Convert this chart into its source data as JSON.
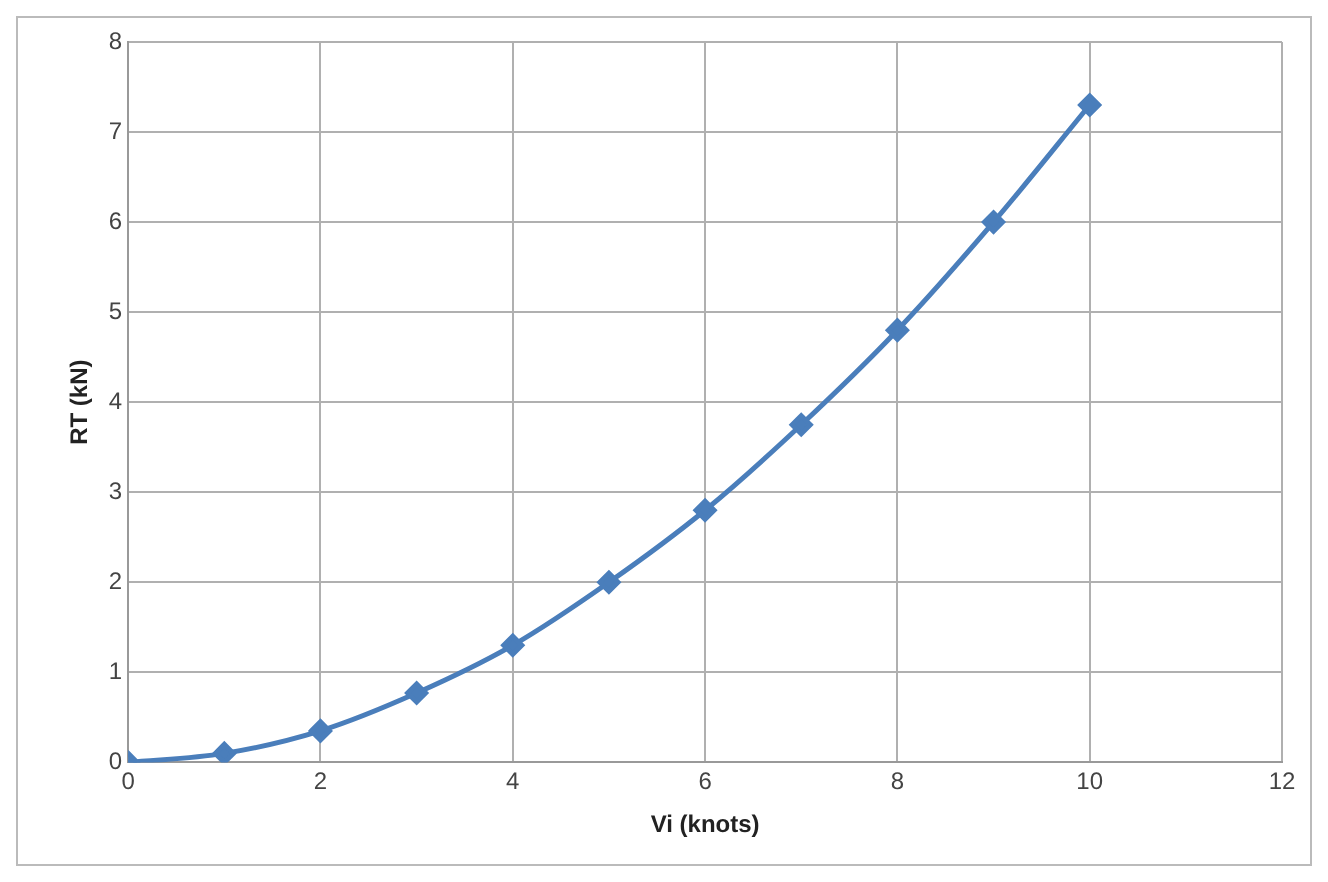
{
  "chart_data": {
    "type": "line",
    "xlabel": "Vi (knots)",
    "ylabel": "RT (kN)",
    "x": [
      0,
      1,
      2,
      3,
      4,
      5,
      6,
      7,
      8,
      9,
      10
    ],
    "series": [
      {
        "color": "#4a7ebb",
        "values": [
          0,
          0.1,
          0.35,
          0.77,
          1.3,
          2.0,
          2.8,
          3.75,
          4.8,
          6.0,
          7.3
        ]
      }
    ],
    "xlim": [
      0,
      12
    ],
    "xticks": [
      0,
      2,
      4,
      6,
      8,
      10,
      12
    ],
    "ylim": [
      0,
      8
    ],
    "yticks": [
      0,
      1,
      2,
      3,
      4,
      5,
      6,
      7,
      8
    ],
    "grid": true,
    "legend": false,
    "marker": "diamond",
    "line_style": "solid"
  }
}
